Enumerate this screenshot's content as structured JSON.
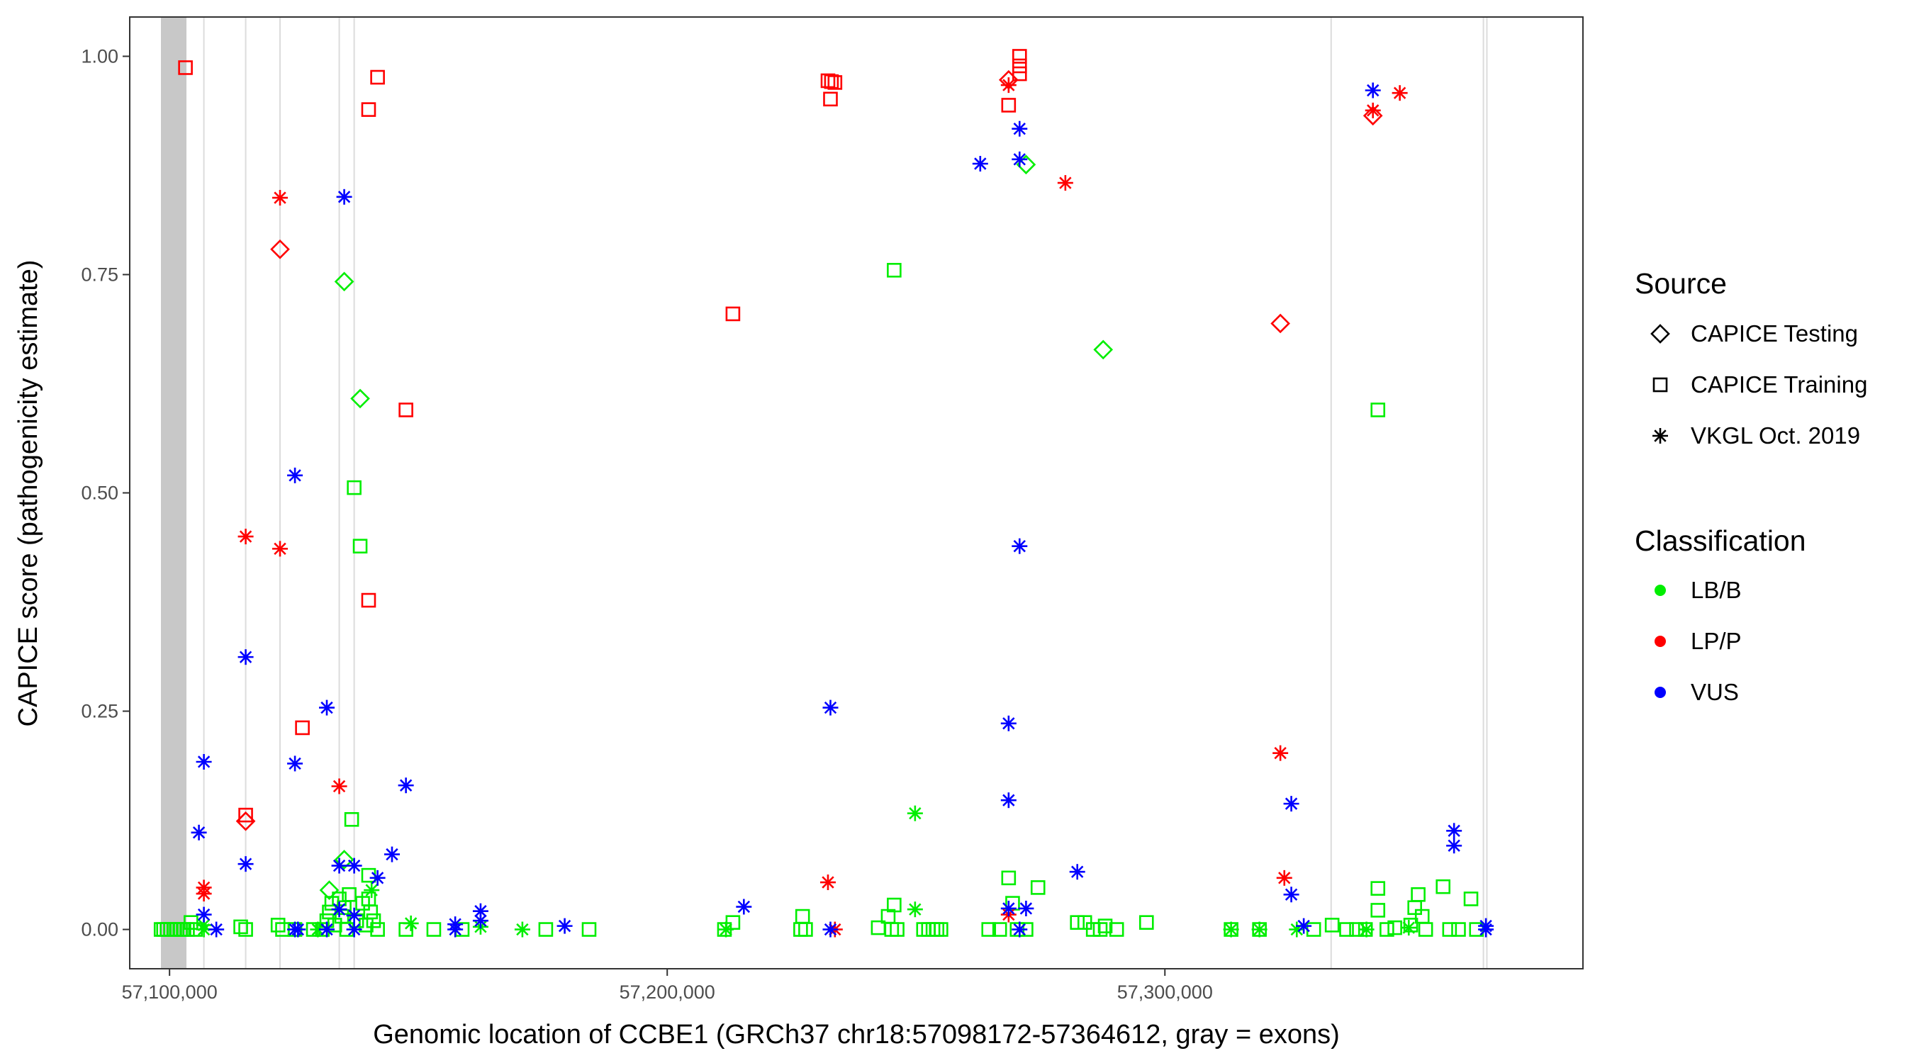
{
  "chart_data": {
    "type": "scatter",
    "xlabel": "Genomic location of CCBE1 (GRCh37 chr18:57098172-57364612, gray = exons)",
    "ylabel": "CAPICE score (pathogenicity estimate)",
    "xlim": [
      57092000,
      57384000
    ],
    "ylim": [
      -0.045,
      1.045
    ],
    "xticks": [
      57100000,
      57200000,
      57300000
    ],
    "xtick_labels": [
      "57,100,000",
      "57,200,000",
      "57,300,000"
    ],
    "yticks": [
      0,
      0.25,
      0.5,
      0.75,
      1.0
    ],
    "ytick_labels": [
      "0.00",
      "0.25",
      "0.50",
      "0.75",
      "1.00"
    ],
    "grid": false,
    "legend_placement": "right",
    "exons": {
      "color": "#c8c8c8",
      "bands": [
        [
          57098270,
          57103400
        ]
      ],
      "lines": [
        57106900,
        57115300,
        57122200,
        57134100,
        57137100,
        57333400,
        57364000,
        57364700
      ]
    },
    "legend_source": {
      "title": "Source",
      "entries": [
        {
          "label": "CAPICE Testing",
          "shape": "diamond"
        },
        {
          "label": "CAPICE Training",
          "shape": "square"
        },
        {
          "label": "VKGL Oct. 2019",
          "shape": "asterisk"
        }
      ]
    },
    "legend_classification": {
      "title": "Classification",
      "entries": [
        {
          "label": "LB/B",
          "color": "#00ee00"
        },
        {
          "label": "LP/P",
          "color": "#ff0000"
        },
        {
          "label": "VUS",
          "color": "#0000ff"
        }
      ]
    },
    "series": [
      {
        "source": "CAPICE Training",
        "classification": "LB/B",
        "points": [
          [
            57098300,
            0
          ],
          [
            57098800,
            0
          ],
          [
            57099500,
            0
          ],
          [
            57100200,
            0
          ],
          [
            57100900,
            0
          ],
          [
            57101500,
            0
          ],
          [
            57102200,
            0
          ],
          [
            57102900,
            0
          ],
          [
            57103600,
            0
          ],
          [
            57104300,
            0.008
          ],
          [
            57105200,
            0
          ],
          [
            57114300,
            0.003
          ],
          [
            57115300,
            0
          ],
          [
            57121800,
            0.005
          ],
          [
            57122700,
            0
          ],
          [
            57125200,
            0
          ],
          [
            57128900,
            0
          ],
          [
            57130700,
            0
          ],
          [
            57131600,
            0.01
          ],
          [
            57132100,
            0.02
          ],
          [
            57132600,
            0.03
          ],
          [
            57133200,
            0.005
          ],
          [
            57134100,
            0.035
          ],
          [
            57134600,
            0.015
          ],
          [
            57135100,
            0.025
          ],
          [
            57135600,
            0
          ],
          [
            57136100,
            0.04
          ],
          [
            57136600,
            0.126
          ],
          [
            57137100,
            0.506
          ],
          [
            57137600,
            0.01
          ],
          [
            57138300,
            0.439
          ],
          [
            57138800,
            0.03
          ],
          [
            57139500,
            0.005
          ],
          [
            57140000,
            0.062
          ],
          [
            57140000,
            0.035
          ],
          [
            57140400,
            0.02
          ],
          [
            57141000,
            0.01
          ],
          [
            57141800,
            0
          ],
          [
            57147500,
            0
          ],
          [
            57153100,
            0
          ],
          [
            57158800,
            0
          ],
          [
            57175600,
            0
          ],
          [
            57184300,
            0
          ],
          [
            57211500,
            0
          ],
          [
            57213200,
            0.008
          ],
          [
            57226800,
            0
          ],
          [
            57227200,
            0.015
          ],
          [
            57227800,
            0
          ],
          [
            57242400,
            0.002
          ],
          [
            57244400,
            0.015
          ],
          [
            57245100,
            0
          ],
          [
            57245600,
            0.755
          ],
          [
            57245600,
            0.028
          ],
          [
            57246200,
            0
          ],
          [
            57251500,
            0
          ],
          [
            57252500,
            0
          ],
          [
            57253400,
            0
          ],
          [
            57254200,
            0
          ],
          [
            57255000,
            0
          ],
          [
            57264600,
            0
          ],
          [
            57266800,
            0
          ],
          [
            57268600,
            0.059
          ],
          [
            57269400,
            0.03
          ],
          [
            57270300,
            0
          ],
          [
            57272100,
            0
          ],
          [
            57274500,
            0.048
          ],
          [
            57282400,
            0.008
          ],
          [
            57283900,
            0.008
          ],
          [
            57285600,
            0
          ],
          [
            57287000,
            0
          ],
          [
            57288000,
            0.004
          ],
          [
            57290300,
            0
          ],
          [
            57296300,
            0.008
          ],
          [
            57313300,
            0
          ],
          [
            57319000,
            0
          ],
          [
            57329900,
            0
          ],
          [
            57333600,
            0.005
          ],
          [
            57336500,
            0
          ],
          [
            57338500,
            0
          ],
          [
            57340300,
            0
          ],
          [
            57342800,
            0.595
          ],
          [
            57342800,
            0.047
          ],
          [
            57342800,
            0.022
          ],
          [
            57344600,
            0
          ],
          [
            57346200,
            0.002
          ],
          [
            57349400,
            0.005
          ],
          [
            57350200,
            0.025
          ],
          [
            57350900,
            0.04
          ],
          [
            57351700,
            0.015
          ],
          [
            57352400,
            0
          ],
          [
            57355900,
            0.049
          ],
          [
            57357200,
            0
          ],
          [
            57359000,
            0
          ],
          [
            57361500,
            0.035
          ],
          [
            57362600,
            0
          ]
        ]
      },
      {
        "source": "CAPICE Testing",
        "classification": "LB/B",
        "points": [
          [
            57132100,
            0.045
          ],
          [
            57135100,
            0.742
          ],
          [
            57135100,
            0.08
          ],
          [
            57138300,
            0.608
          ],
          [
            57272100,
            0.876
          ],
          [
            57287600,
            0.664
          ]
        ]
      },
      {
        "source": "VKGL Oct. 2019",
        "classification": "LB/B",
        "points": [
          [
            57106900,
            0
          ],
          [
            57106900,
            0.005
          ],
          [
            57129800,
            0
          ],
          [
            57140600,
            0.045
          ],
          [
            57148500,
            0.007
          ],
          [
            57162500,
            0.003
          ],
          [
            57170900,
            0
          ],
          [
            57211800,
            0
          ],
          [
            57249800,
            0.133
          ],
          [
            57249800,
            0.023
          ],
          [
            57313300,
            0
          ],
          [
            57319000,
            0
          ],
          [
            57326500,
            0
          ],
          [
            57340500,
            0
          ],
          [
            57349000,
            0.002
          ]
        ]
      },
      {
        "source": "CAPICE Training",
        "classification": "LP/P",
        "points": [
          [
            57103200,
            0.987
          ],
          [
            57141800,
            0.976
          ],
          [
            57140000,
            0.939
          ],
          [
            57147500,
            0.595
          ],
          [
            57140000,
            0.377
          ],
          [
            57126700,
            0.231
          ],
          [
            57115300,
            0.131
          ],
          [
            57232300,
            0.972
          ],
          [
            57233000,
            0.971
          ],
          [
            57233700,
            0.97
          ],
          [
            57232800,
            0.951
          ],
          [
            57213200,
            0.705
          ],
          [
            57270800,
            1.0
          ],
          [
            57270800,
            0.989
          ],
          [
            57270800,
            0.98
          ],
          [
            57268600,
            0.944
          ]
        ]
      },
      {
        "source": "CAPICE Testing",
        "classification": "LP/P",
        "points": [
          [
            57122200,
            0.779
          ],
          [
            57115300,
            0.124
          ],
          [
            57268600,
            0.973
          ],
          [
            57323200,
            0.694
          ],
          [
            57341800,
            0.932
          ]
        ]
      },
      {
        "source": "VKGL Oct. 2019",
        "classification": "LP/P",
        "points": [
          [
            57122200,
            0.838
          ],
          [
            57115300,
            0.45
          ],
          [
            57122200,
            0.436
          ],
          [
            57134100,
            0.164
          ],
          [
            57106900,
            0.048
          ],
          [
            57106900,
            0.041
          ],
          [
            57232300,
            0.054
          ],
          [
            57233700,
            0
          ],
          [
            57268600,
            0.967
          ],
          [
            57280000,
            0.855
          ],
          [
            57268600,
            0.017
          ],
          [
            57323200,
            0.202
          ],
          [
            57324000,
            0.059
          ],
          [
            57341800,
            0.938
          ],
          [
            57347200,
            0.958
          ]
        ]
      },
      {
        "source": "VKGL Oct. 2019",
        "classification": "VUS",
        "points": [
          [
            57135100,
            0.839
          ],
          [
            57125200,
            0.52
          ],
          [
            57115300,
            0.312
          ],
          [
            57131600,
            0.254
          ],
          [
            57125200,
            0.19
          ],
          [
            57106900,
            0.192
          ],
          [
            57147500,
            0.165
          ],
          [
            57105900,
            0.111
          ],
          [
            57115300,
            0.075
          ],
          [
            57144700,
            0.086
          ],
          [
            57134100,
            0.073
          ],
          [
            57137100,
            0.073
          ],
          [
            57141800,
            0.059
          ],
          [
            57106900,
            0.017
          ],
          [
            57109400,
            0
          ],
          [
            57125200,
            0
          ],
          [
            57125800,
            0
          ],
          [
            57131600,
            0
          ],
          [
            57134100,
            0.023
          ],
          [
            57137100,
            0.016
          ],
          [
            57137100,
            0
          ],
          [
            57157400,
            0.006
          ],
          [
            57157400,
            0
          ],
          [
            57162500,
            0.021
          ],
          [
            57162500,
            0.01
          ],
          [
            57179400,
            0.004
          ],
          [
            57215400,
            0.026
          ],
          [
            57232800,
            0.254
          ],
          [
            57232800,
            0
          ],
          [
            57262900,
            0.877
          ],
          [
            57270800,
            0.917
          ],
          [
            57270800,
            0.882
          ],
          [
            57270800,
            0.439
          ],
          [
            57268600,
            0.236
          ],
          [
            57268600,
            0.148
          ],
          [
            57282400,
            0.066
          ],
          [
            57268600,
            0.024
          ],
          [
            57270800,
            0
          ],
          [
            57272100,
            0.024
          ],
          [
            57341800,
            0.961
          ],
          [
            57325400,
            0.144
          ],
          [
            57325400,
            0.04
          ],
          [
            57327900,
            0.004
          ],
          [
            57358100,
            0.113
          ],
          [
            57358100,
            0.096
          ],
          [
            57364500,
            0.004
          ],
          [
            57364500,
            0
          ]
        ]
      }
    ]
  }
}
